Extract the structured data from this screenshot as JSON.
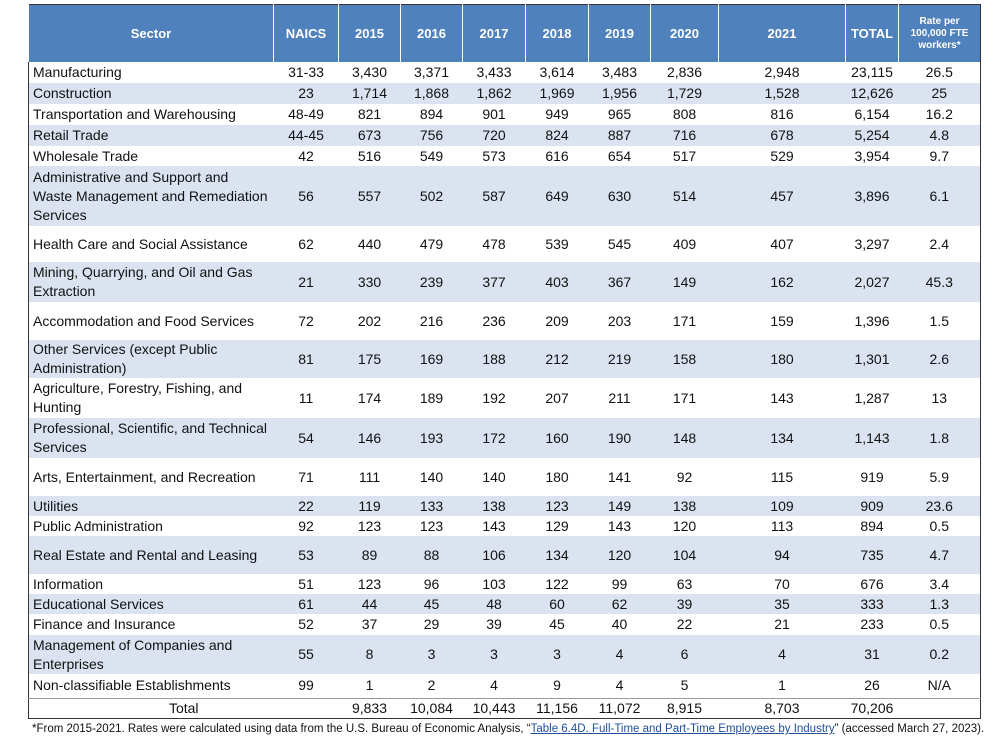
{
  "table": {
    "headers": [
      "Sector",
      "NAICS",
      "2015",
      "2016",
      "2017",
      "2018",
      "2019",
      "2020",
      "2021",
      "TOTAL",
      "Rate per 100,000 FTE workers*"
    ],
    "rows": [
      [
        "Manufacturing",
        "31-33",
        "3,430",
        "3,371",
        "3,433",
        "3,614",
        "3,483",
        "2,836",
        "2,948",
        "23,115",
        "26.5"
      ],
      [
        "Construction",
        "23",
        "1,714",
        "1,868",
        "1,862",
        "1,969",
        "1,956",
        "1,729",
        "1,528",
        "12,626",
        "25"
      ],
      [
        "Transportation and  Warehousing",
        "48-49",
        "821",
        "894",
        "901",
        "949",
        "965",
        "808",
        "816",
        "6,154",
        "16.2"
      ],
      [
        "Retail Trade",
        "44-45",
        "673",
        "756",
        "720",
        "824",
        "887",
        "716",
        "678",
        "5,254",
        "4.8"
      ],
      [
        "Wholesale Trade",
        "42",
        "516",
        "549",
        "573",
        "616",
        "654",
        "517",
        "529",
        "3,954",
        "9.7"
      ],
      [
        "Administrative and Support and Waste Management and Remediation Services",
        "56",
        "557",
        "502",
        "587",
        "649",
        "630",
        "514",
        "457",
        "3,896",
        "6.1"
      ],
      [
        "Health Care and Social Assistance",
        "62",
        "440",
        "479",
        "478",
        "539",
        "545",
        "409",
        "407",
        "3,297",
        "2.4"
      ],
      [
        "Mining, Quarrying, and Oil and Gas Extraction",
        "21",
        "330",
        "239",
        "377",
        "403",
        "367",
        "149",
        "162",
        "2,027",
        "45.3"
      ],
      [
        "Accommodation and Food Services",
        "72",
        "202",
        "216",
        "236",
        "209",
        "203",
        "171",
        "159",
        "1,396",
        "1.5"
      ],
      [
        "Other Services (except Public Administration)",
        "81",
        "175",
        "169",
        "188",
        "212",
        "219",
        "158",
        "180",
        "1,301",
        "2.6"
      ],
      [
        "Agriculture, Forestry, Fishing, and Hunting",
        "11",
        "174",
        "189",
        "192",
        "207",
        "211",
        "171",
        "143",
        "1,287",
        "13"
      ],
      [
        "Professional, Scientific, and Technical Services",
        "54",
        "146",
        "193",
        "172",
        "160",
        "190",
        "148",
        "134",
        "1,143",
        "1.8"
      ],
      [
        "Arts, Entertainment, and Recreation",
        "71",
        "111",
        "140",
        "140",
        "180",
        "141",
        "92",
        "115",
        "919",
        "5.9"
      ],
      [
        "Utilities",
        "22",
        "119",
        "133",
        "138",
        "123",
        "149",
        "138",
        "109",
        "909",
        "23.6"
      ],
      [
        "Public Administration",
        "92",
        "123",
        "123",
        "143",
        "129",
        "143",
        "120",
        "113",
        "894",
        "0.5"
      ],
      [
        "Real Estate and Rental and Leasing",
        "53",
        "89",
        "88",
        "106",
        "134",
        "120",
        "104",
        "94",
        "735",
        "4.7"
      ],
      [
        "Information",
        "51",
        "123",
        "96",
        "103",
        "122",
        "99",
        "63",
        "70",
        "676",
        "3.4"
      ],
      [
        "Educational Services",
        "61",
        "44",
        "45",
        "48",
        "60",
        "62",
        "39",
        "35",
        "333",
        "1.3"
      ],
      [
        "Finance and Insurance",
        "52",
        "37",
        "29",
        "39",
        "45",
        "40",
        "22",
        "21",
        "233",
        "0.5"
      ],
      [
        "Management of Companies and Enterprises",
        "55",
        "8",
        "3",
        "3",
        "3",
        "4",
        "6",
        "4",
        "31",
        "0.2"
      ],
      [
        "Non-classifiable Establishments",
        "99",
        "1",
        "2",
        "4",
        "9",
        "4",
        "5",
        "1",
        "26",
        "N/A"
      ]
    ],
    "total": {
      "label": "Total",
      "values": [
        "9,833",
        "10,084",
        "10,443",
        "11,156",
        "11,072",
        "8,915",
        "8,703",
        "70,206"
      ]
    }
  },
  "footnote": {
    "before": "*From 2015-2021. Rates were calculated using data from the U.S. Bureau of Economic Analysis, “",
    "link": "Table 6.4D. Full-Time and Part-Time Employees by Industry",
    "after": "” (accessed March 27, 2023)."
  }
}
